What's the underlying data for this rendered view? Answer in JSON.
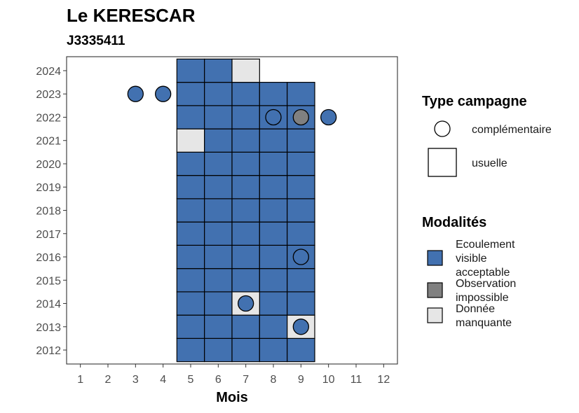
{
  "chart_data": {
    "type": "heatmap",
    "title": "Le KERESCAR",
    "subtitle": "J3335411",
    "xlabel": "Mois",
    "ylabel": "",
    "x_ticks": [
      1,
      2,
      3,
      4,
      5,
      6,
      7,
      8,
      9,
      10,
      11,
      12
    ],
    "y_ticks": [
      2012,
      2013,
      2014,
      2015,
      2016,
      2017,
      2018,
      2019,
      2020,
      2021,
      2022,
      2023,
      2024
    ],
    "xlim": [
      0.5,
      12.5
    ],
    "ylim": [
      2011.4,
      2024.6
    ],
    "grid": false,
    "legend_position": "right",
    "colors": {
      "ecoulement": "#4271B0",
      "observation_impossible": "#808080",
      "donnee_manquante": "#E6E6E6"
    },
    "legend_type": {
      "title": "Type campagne",
      "items": [
        {
          "shape": "circle",
          "label": "complémentaire"
        },
        {
          "shape": "square",
          "label": "usuelle"
        }
      ]
    },
    "legend_modalites": {
      "title": "Modalités",
      "items": [
        {
          "key": "ecoulement",
          "label": "Ecoulement visible acceptable",
          "lines": [
            "Ecoulement",
            "visible",
            "acceptable"
          ]
        },
        {
          "key": "observation_impossible",
          "label": "Observation impossible",
          "lines": [
            "Observation",
            "impossible"
          ]
        },
        {
          "key": "donnee_manquante",
          "label": "Donnée manquante",
          "lines": [
            "Donnée",
            "manquante"
          ]
        }
      ]
    },
    "usuelle": [
      {
        "year": 2012,
        "months": [
          5,
          6,
          7,
          8,
          9
        ],
        "value": "ecoulement"
      },
      {
        "year": 2013,
        "months": [
          5,
          6,
          7,
          8
        ],
        "value": "ecoulement"
      },
      {
        "year": 2013,
        "months": [
          9
        ],
        "value": "donnee_manquante"
      },
      {
        "year": 2014,
        "months": [
          5,
          6,
          8,
          9
        ],
        "value": "ecoulement"
      },
      {
        "year": 2014,
        "months": [
          7
        ],
        "value": "donnee_manquante"
      },
      {
        "year": 2015,
        "months": [
          5,
          6,
          7,
          8,
          9
        ],
        "value": "ecoulement"
      },
      {
        "year": 2016,
        "months": [
          5,
          6,
          7,
          8,
          9
        ],
        "value": "ecoulement"
      },
      {
        "year": 2017,
        "months": [
          5,
          6,
          7,
          8,
          9
        ],
        "value": "ecoulement"
      },
      {
        "year": 2018,
        "months": [
          5,
          6,
          7,
          8,
          9
        ],
        "value": "ecoulement"
      },
      {
        "year": 2019,
        "months": [
          5,
          6,
          7,
          8,
          9
        ],
        "value": "ecoulement"
      },
      {
        "year": 2020,
        "months": [
          5,
          6,
          7,
          8,
          9
        ],
        "value": "ecoulement"
      },
      {
        "year": 2021,
        "months": [
          5
        ],
        "value": "donnee_manquante"
      },
      {
        "year": 2021,
        "months": [
          6,
          7,
          8,
          9
        ],
        "value": "ecoulement"
      },
      {
        "year": 2022,
        "months": [
          5,
          6,
          7,
          8,
          9
        ],
        "value": "ecoulement"
      },
      {
        "year": 2023,
        "months": [
          5,
          6,
          7,
          8,
          9
        ],
        "value": "ecoulement"
      },
      {
        "year": 2024,
        "months": [
          5,
          6
        ],
        "value": "ecoulement"
      },
      {
        "year": 2024,
        "months": [
          7
        ],
        "value": "donnee_manquante"
      }
    ],
    "complementaire": [
      {
        "year": 2023,
        "month": 3,
        "value": "ecoulement"
      },
      {
        "year": 2023,
        "month": 4,
        "value": "ecoulement"
      },
      {
        "year": 2022,
        "month": 8,
        "value": "ecoulement"
      },
      {
        "year": 2022,
        "month": 9,
        "value": "observation_impossible"
      },
      {
        "year": 2022,
        "month": 10,
        "value": "ecoulement"
      },
      {
        "year": 2016,
        "month": 9,
        "value": "ecoulement"
      },
      {
        "year": 2014,
        "month": 7,
        "value": "ecoulement"
      },
      {
        "year": 2013,
        "month": 9,
        "value": "ecoulement"
      }
    ]
  }
}
